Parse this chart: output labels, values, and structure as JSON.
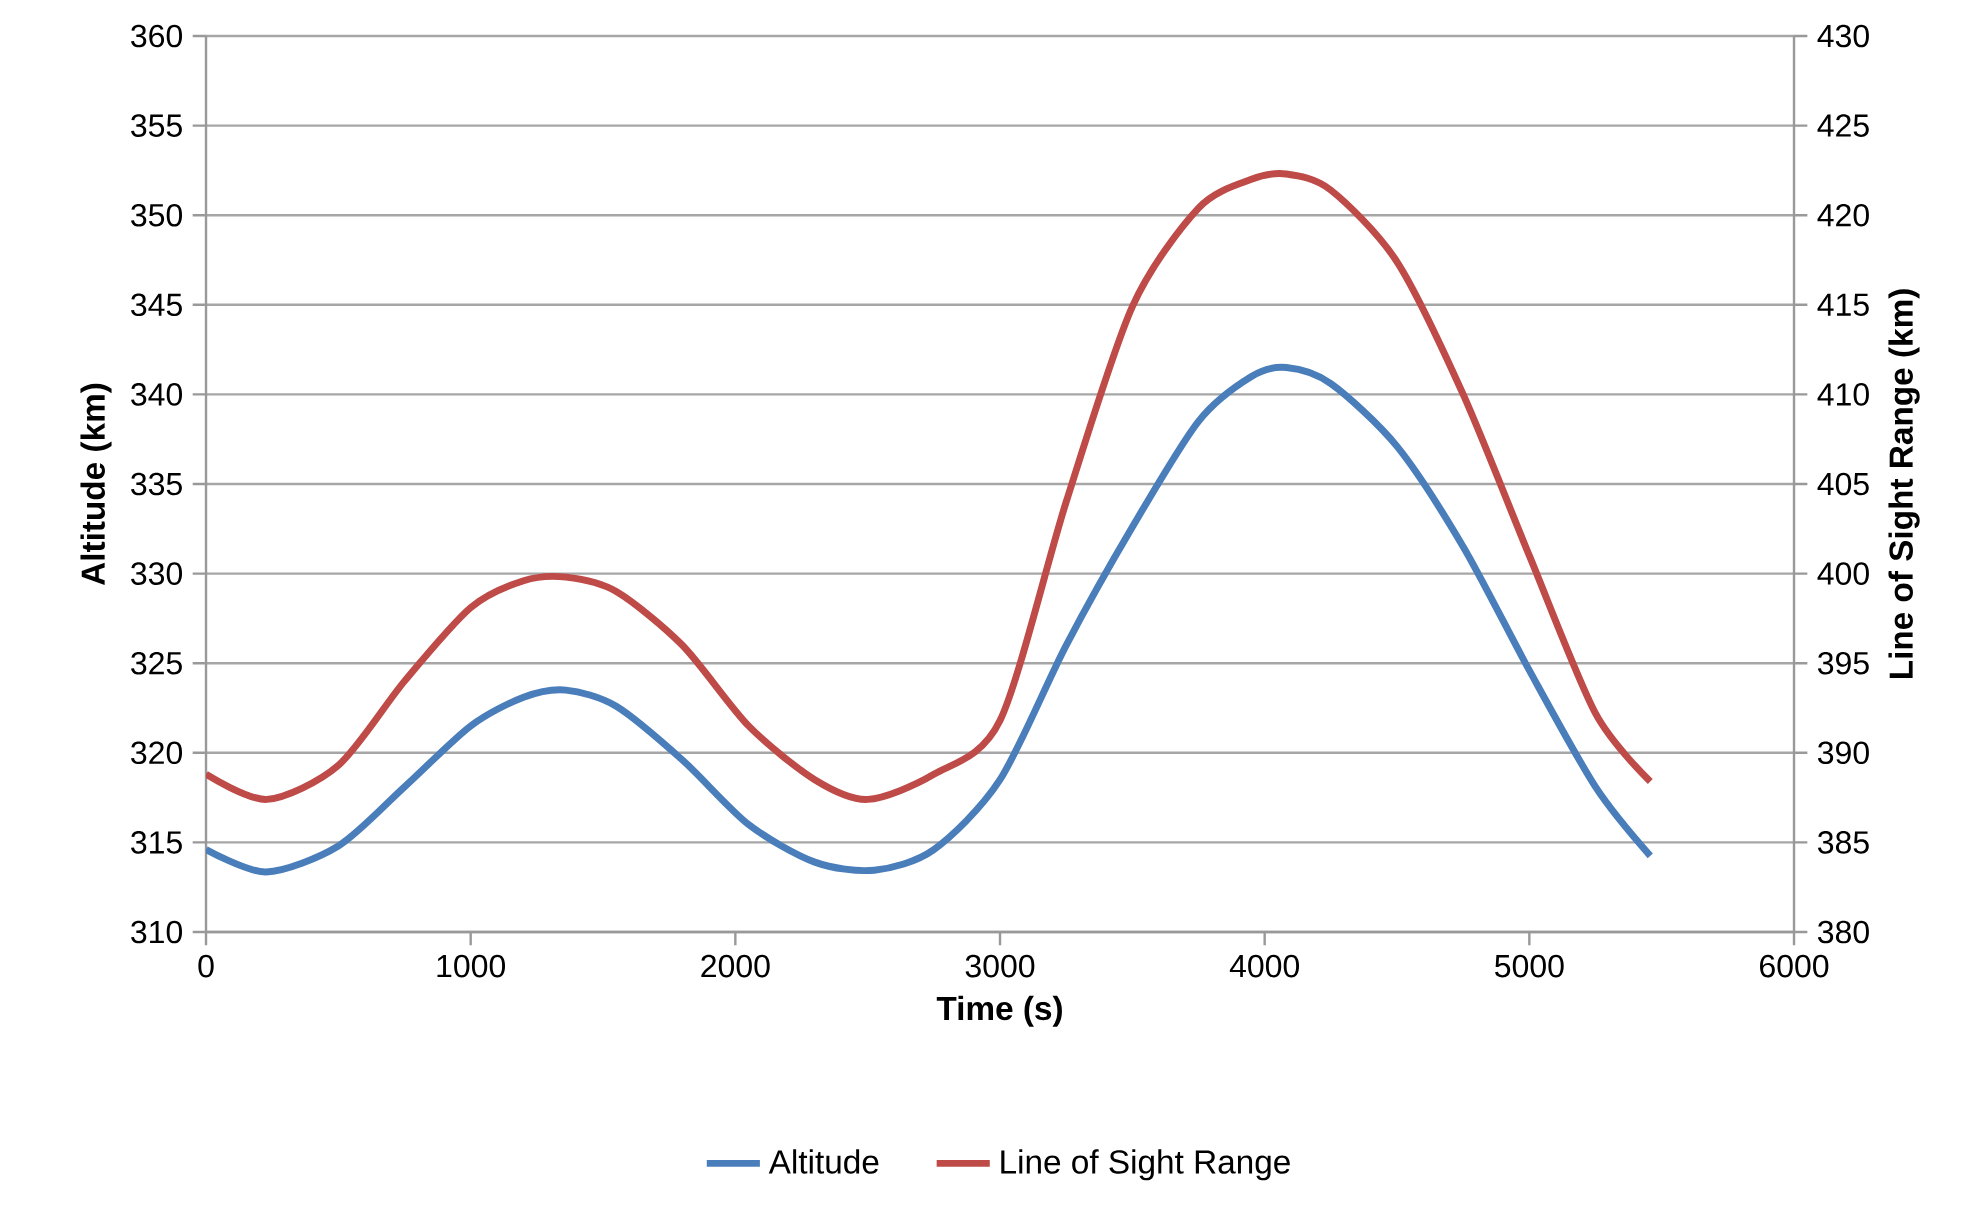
{
  "chart_data": {
    "type": "line",
    "xlabel": "Time (s)",
    "ylabel": "Altitude (km)",
    "y2label": "Line of Sight Range (km)",
    "xlim": [
      0,
      6000
    ],
    "xticks": [
      0,
      1000,
      2000,
      3000,
      4000,
      5000,
      6000
    ],
    "ylim": [
      310,
      360
    ],
    "yticks": [
      310,
      315,
      320,
      325,
      330,
      335,
      340,
      345,
      350,
      355,
      360
    ],
    "y2lim": [
      380,
      430
    ],
    "y2ticks": [
      380,
      385,
      390,
      395,
      400,
      405,
      410,
      415,
      420,
      425,
      430
    ],
    "grid": "y",
    "legend": "bottom",
    "marker": "none",
    "line_style": "solid",
    "series": [
      {
        "name": "Altitude",
        "color": "#4a7ebb",
        "x": [
          0,
          227,
          500,
          750,
          1000,
          1200,
          1360,
          1550,
          1800,
          2050,
          2300,
          2525,
          2750,
          3000,
          3250,
          3500,
          3750,
          3950,
          4082,
          4250,
          4500,
          4750,
          5000,
          5250,
          5457
        ],
        "values": [
          314.6,
          313.35,
          314.8,
          318.1,
          321.5,
          323.1,
          323.5,
          322.6,
          319.6,
          316.0,
          313.9,
          313.45,
          314.6,
          318.5,
          326.0,
          332.6,
          338.5,
          341.0,
          341.5,
          340.6,
          337.1,
          331.5,
          324.6,
          318.1,
          314.25
        ]
      },
      {
        "name": "Line of Sight Range",
        "color": "#be4b48",
        "axis": "y2",
        "x": [
          0,
          230,
          500,
          750,
          1000,
          1200,
          1360,
          1550,
          1800,
          2050,
          2300,
          2500,
          2750,
          3000,
          3250,
          3500,
          3750,
          3950,
          4082,
          4250,
          4500,
          4750,
          5000,
          5250,
          5457
        ],
        "values": [
          388.8,
          387.4,
          389.3,
          394.0,
          398.1,
          399.6,
          399.8,
          399.0,
          396.0,
          391.5,
          388.5,
          387.4,
          388.8,
          391.8,
          404.0,
          414.9,
          420.4,
          422.0,
          422.3,
          421.4,
          417.4,
          410.0,
          401.0,
          392.2,
          388.4
        ]
      }
    ]
  }
}
